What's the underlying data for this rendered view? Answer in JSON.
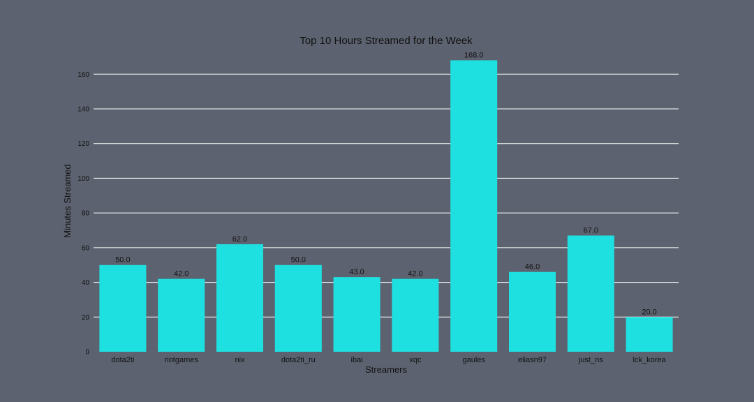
{
  "chart_data": {
    "type": "bar",
    "title": "Top 10 Hours Streamed for the Week",
    "xlabel": "Streamers",
    "ylabel": "Minutes Streamed",
    "categories": [
      "dota2ti",
      "riotgames",
      "nix",
      "dota2ti_ru",
      "ibai",
      "xqc",
      "gaules",
      "eliasn97",
      "just_ns",
      "lck_korea"
    ],
    "values": [
      50,
      42,
      62,
      50,
      43,
      42,
      168,
      46,
      67,
      20
    ],
    "data_labels": [
      "50.0",
      "42.0",
      "62.0",
      "50.0",
      "43.0",
      "42.0",
      "168.0",
      "46.0",
      "67.0",
      "20.0"
    ],
    "yticks": [
      "0",
      "20",
      "40",
      "60",
      "80",
      "100",
      "120",
      "140",
      "160"
    ],
    "ylim": [
      0,
      175
    ],
    "grid": "horizontal",
    "bar_color": "#1fe0e0",
    "background_color": "#5c626f",
    "grid_color": "#ffffff"
  }
}
